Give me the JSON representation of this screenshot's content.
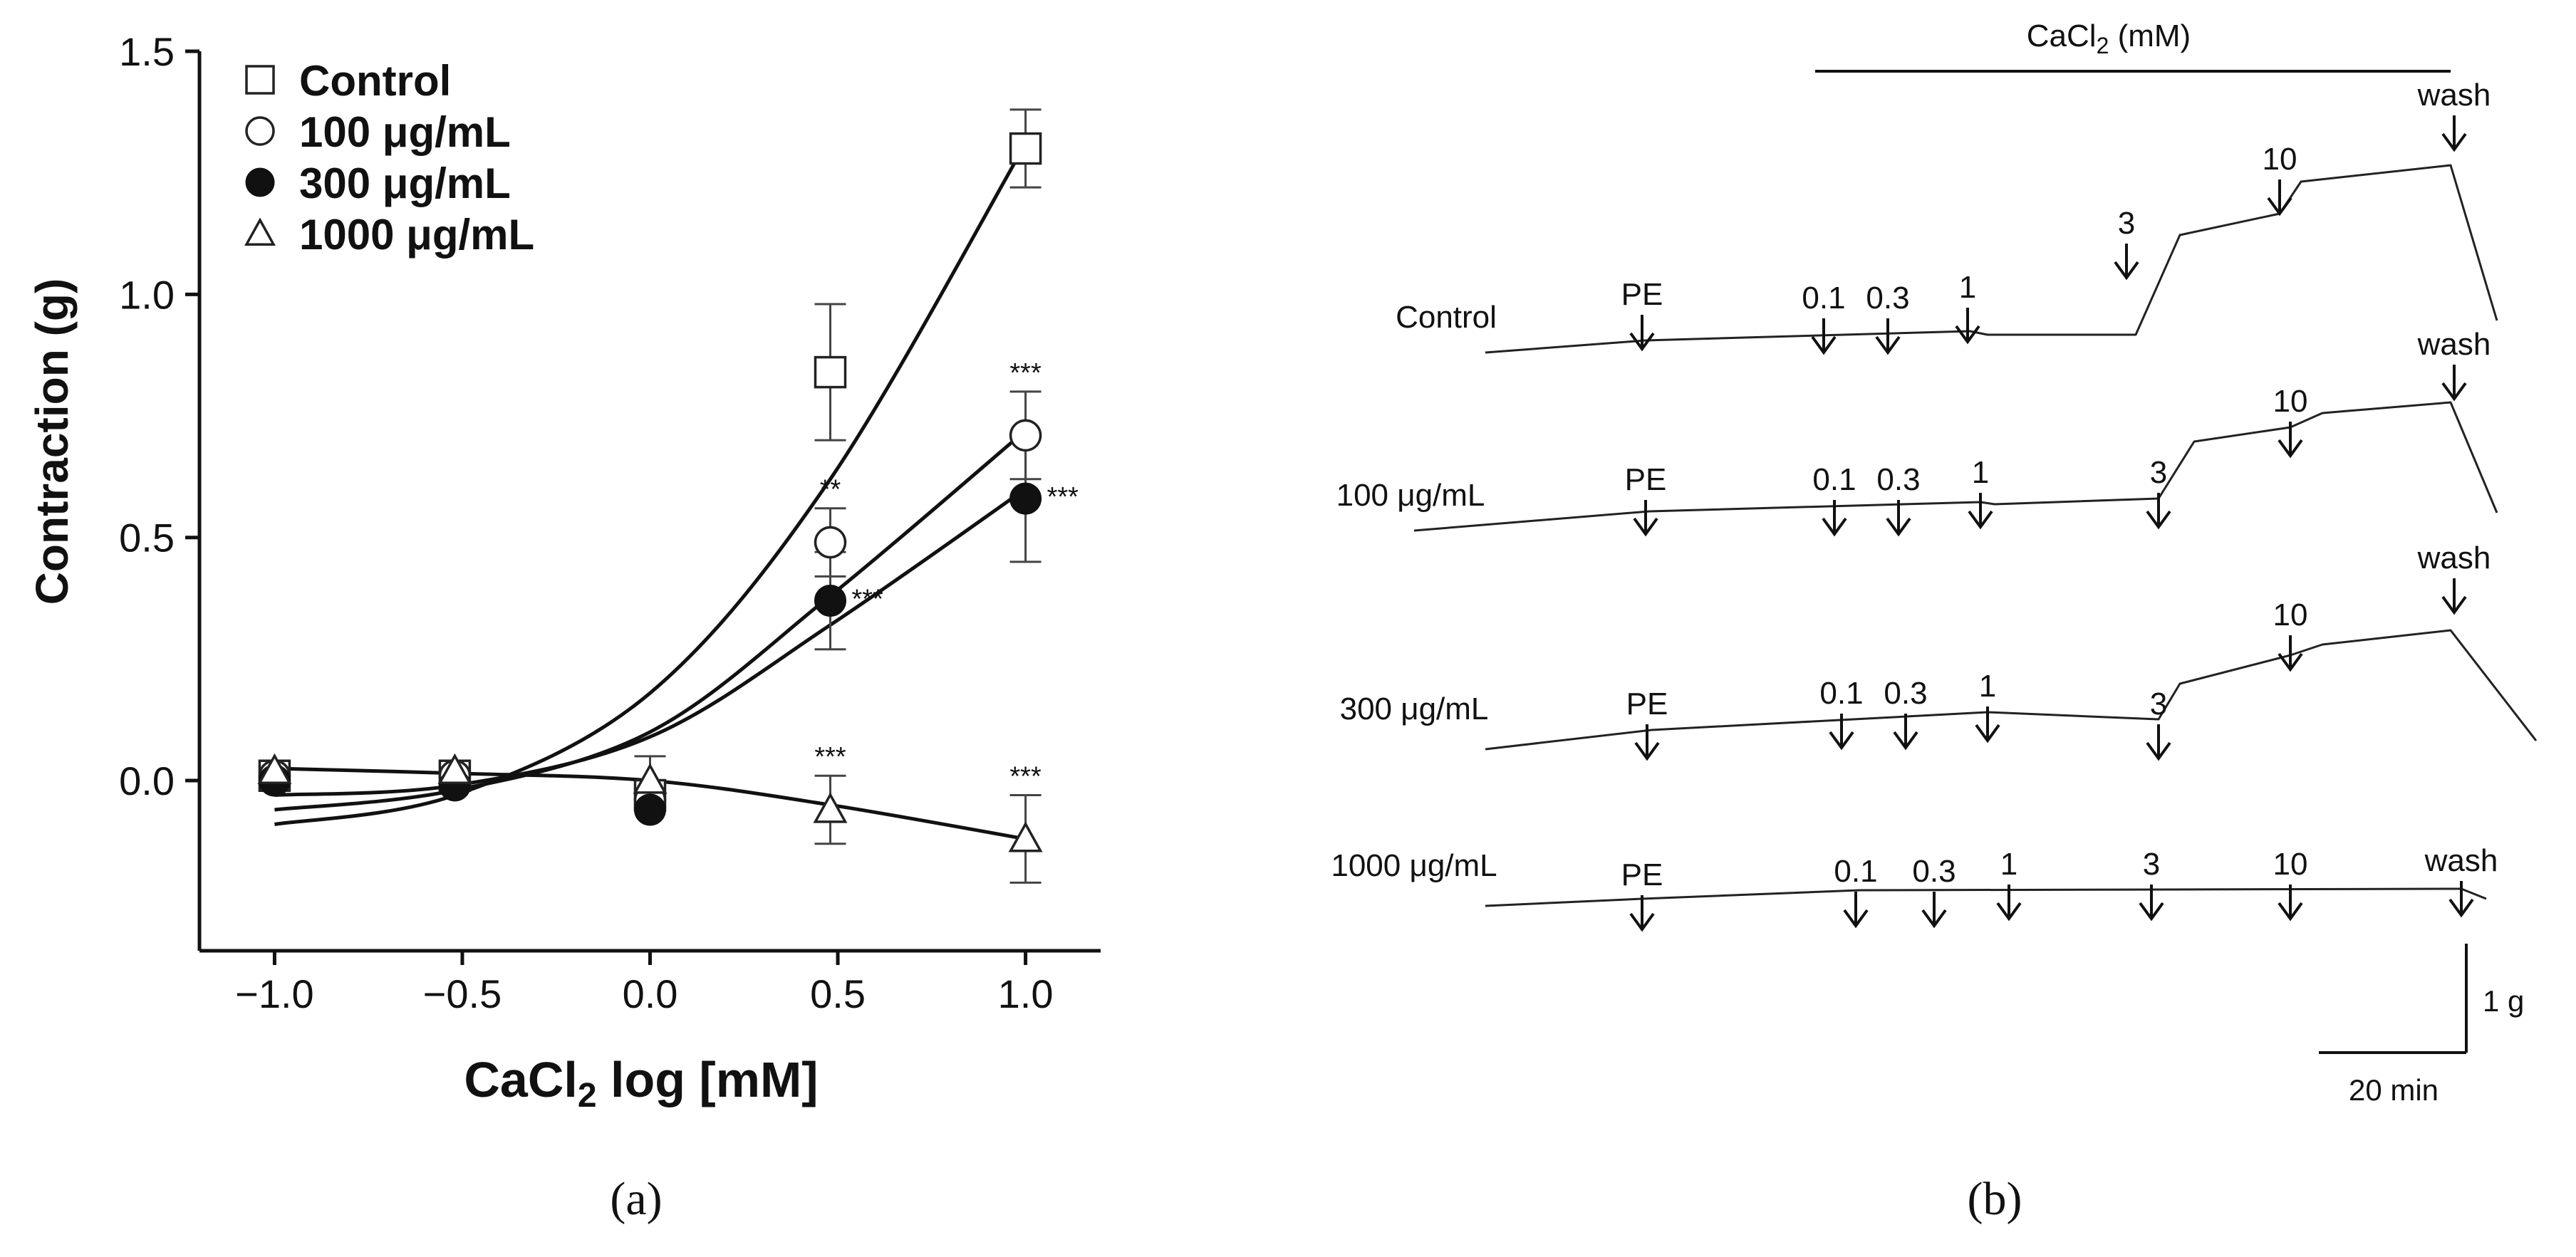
{
  "panel_a": {
    "label": "(a)",
    "label_letter": "a",
    "ylabel": "Contraction (g)",
    "xlabel_main": "CaCl",
    "xlabel_sub": "2",
    "xlabel_rest": " log [mM]"
  },
  "panel_b": {
    "label": "(b)",
    "label_letter": "b",
    "header_main": "CaCl",
    "header_sub": "2",
    "header_rest": " (mM)",
    "scale_y": "1 g",
    "scale_x": "20 min",
    "traces": [
      {
        "name": "Control",
        "markers": [
          "PE",
          "0.1",
          "0.3",
          "1",
          "3",
          "10",
          "wash"
        ]
      },
      {
        "name": "100 μg/mL",
        "markers": [
          "PE",
          "0.1",
          "0.3",
          "1",
          "3",
          "10",
          "wash"
        ]
      },
      {
        "name": "300 μg/mL",
        "markers": [
          "PE",
          "0.1",
          "0.3",
          "1",
          "3",
          "10",
          "wash"
        ]
      },
      {
        "name": "1000 μg/mL",
        "markers": [
          "PE",
          "0.1",
          "0.3",
          "1",
          "3",
          "10",
          "wash"
        ]
      }
    ]
  },
  "chart_data": [
    {
      "type": "scatter",
      "title": "",
      "xlabel": "CaCl2 log [mM]",
      "ylabel": "Contraction (g)",
      "xlim": [
        -1.2,
        1.2
      ],
      "ylim": [
        -0.35,
        1.5
      ],
      "x_ticks": [
        "−1.0",
        "−0.5",
        "0.0",
        "0.5",
        "1.0"
      ],
      "y_ticks": [
        "0.0",
        "0.5",
        "1.0",
        "1.5"
      ],
      "legend_position": "top-left",
      "series": [
        {
          "name": "Control",
          "marker": "open-square",
          "x": [
            -1.0,
            -0.52,
            0.0,
            0.48,
            1.0
          ],
          "y": [
            0.01,
            0.01,
            -0.03,
            0.84,
            1.3
          ],
          "err": [
            0.0,
            0.0,
            0.0,
            0.14,
            0.08
          ],
          "significance": [
            "",
            "",
            "",
            "",
            ""
          ],
          "fit": [
            -0.09,
            -0.03,
            0.18,
            0.62,
            1.31
          ]
        },
        {
          "name": "100 μg/mL",
          "marker": "open-circle",
          "x": [
            -1.0,
            -0.52,
            0.0,
            0.48,
            1.0
          ],
          "y": [
            0.01,
            0.01,
            -0.04,
            0.49,
            0.71
          ],
          "err": [
            0.0,
            0.0,
            0.0,
            0.07,
            0.09
          ],
          "significance": [
            "",
            "",
            "",
            "**",
            "***"
          ],
          "fit": [
            -0.06,
            -0.02,
            0.1,
            0.38,
            0.72
          ]
        },
        {
          "name": "300 μg/mL",
          "marker": "filled-circle",
          "x": [
            -1.0,
            -0.52,
            0.0,
            0.48,
            1.0
          ],
          "y": [
            0.0,
            -0.01,
            -0.06,
            0.37,
            0.58
          ],
          "err": [
            0.0,
            0.0,
            0.0,
            0.1,
            0.13
          ],
          "significance": [
            "",
            "",
            "",
            "***",
            "***"
          ],
          "fit": [
            -0.03,
            -0.01,
            0.09,
            0.32,
            0.6
          ]
        },
        {
          "name": "1000 μg/mL",
          "marker": "open-triangle",
          "x": [
            -1.0,
            -0.52,
            0.0,
            0.48,
            1.0
          ],
          "y": [
            0.02,
            0.02,
            0.0,
            -0.06,
            -0.12
          ],
          "err": [
            0.0,
            0.0,
            0.05,
            0.07,
            0.09
          ],
          "significance": [
            "",
            "",
            "",
            "***",
            "***"
          ],
          "fit": [
            0.025,
            0.015,
            0.0,
            -0.05,
            -0.12
          ]
        }
      ]
    }
  ]
}
